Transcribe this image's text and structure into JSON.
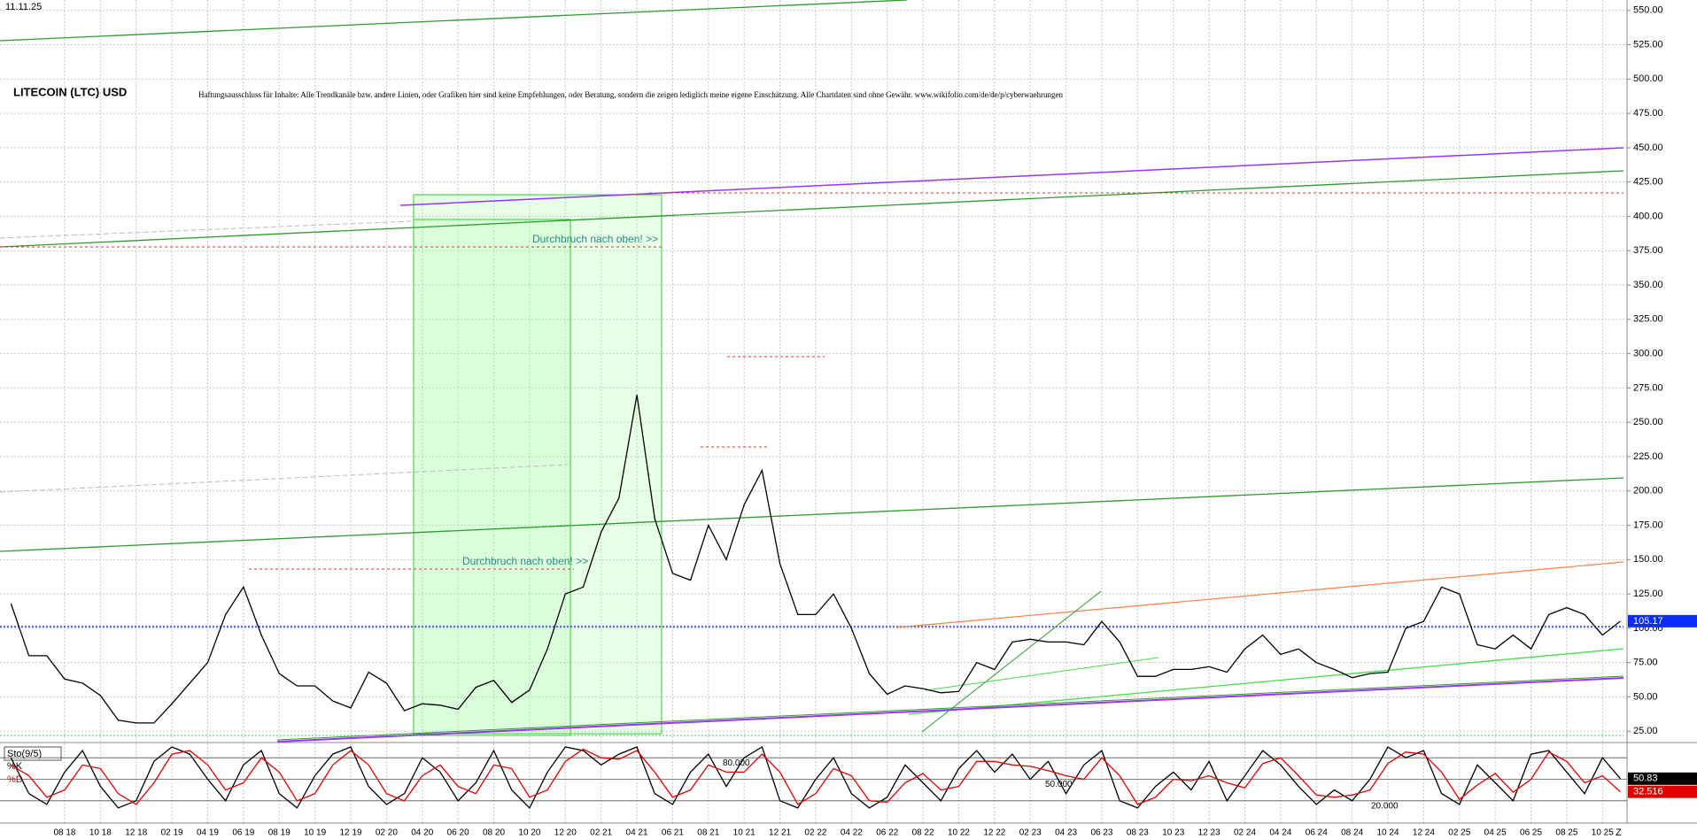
{
  "chart_data": [
    {
      "type": "line",
      "title": "LITECOIN (LTC) USD",
      "date": "11.11.25",
      "disclaimer": "Haftungsausschluss für Inhalte: Alle Trendkanäle bzw. andere Linien, oder Grafiken hier sind keine Empfehlungen, oder Beratung, sondern die zeigen lediglich meine eigene Einschätzung. Alle Chartdaten sind ohne Gewähr.  www.wikifolio.com/de/de/p/cyberwaehrungen",
      "annotations": [
        "Durchbruch nach oben! >>",
        "Durchbruch nach oben! >>"
      ],
      "x_end_label": "Z",
      "categories": [
        null,
        null,
        null,
        "08 18",
        null,
        "10 18",
        null,
        "12 18",
        null,
        "02 19",
        null,
        "04 19",
        null,
        "06 19",
        null,
        "08 19",
        null,
        "10 19",
        null,
        "12 19",
        null,
        "02 20",
        null,
        "04 20",
        null,
        "06 20",
        null,
        "08 20",
        null,
        "10 20",
        null,
        "12 20",
        null,
        "02 21",
        null,
        "04 21",
        null,
        "06 21",
        null,
        "08 21",
        null,
        "10 21",
        null,
        "12 21",
        null,
        "02 22",
        null,
        "04 22",
        null,
        "06 22",
        null,
        "08 22",
        null,
        "10 22",
        null,
        "12 22",
        null,
        "02 23",
        null,
        "04 23",
        null,
        "06 23",
        null,
        "08 23",
        null,
        "10 23",
        null,
        "12 23",
        null,
        "02 24",
        null,
        "04 24",
        null,
        "06 24",
        null,
        "08 24",
        null,
        "10 24",
        null,
        "12 24",
        null,
        "02 25",
        null,
        "04 25",
        null,
        "06 25",
        null,
        "08 25",
        null,
        "10 25",
        null
      ],
      "series": [
        {
          "color": "#000000",
          "values": [
            118,
            80,
            80,
            63,
            60,
            51,
            33,
            31,
            31,
            45,
            60,
            75,
            110,
            130,
            95,
            67,
            58,
            58,
            47,
            42,
            68,
            60,
            40,
            45,
            44,
            41,
            57,
            62,
            46,
            55,
            85,
            125,
            130,
            170,
            195,
            270,
            180,
            140,
            135,
            175,
            150,
            190,
            215,
            147,
            110,
            110,
            125,
            100,
            67,
            52,
            58,
            56,
            53,
            54,
            75,
            70,
            90,
            92,
            90,
            90,
            88,
            105,
            90,
            65,
            65,
            70,
            70,
            72,
            68,
            85,
            95,
            81,
            85,
            75,
            70,
            64,
            67,
            68,
            100,
            105,
            130,
            125,
            88,
            85,
            95,
            85,
            110,
            115,
            110,
            95,
            105.17
          ]
        }
      ],
      "ylim": [
        20,
        555
      ],
      "yticks": [
        {
          "value": 25,
          "label": "25.00"
        },
        {
          "value": 50,
          "label": "50.00"
        },
        {
          "value": 75,
          "label": "75.00"
        },
        {
          "value": 100,
          "label": "100.00"
        },
        {
          "value": 125,
          "label": "125.00"
        },
        {
          "value": 150,
          "label": "150.00"
        },
        {
          "value": 175,
          "label": "175.00"
        },
        {
          "value": 200,
          "label": "200.00"
        },
        {
          "value": 225,
          "label": "225.00"
        },
        {
          "value": 250,
          "label": "250.00"
        },
        {
          "value": 275,
          "label": "275.00"
        },
        {
          "value": 300,
          "label": "300.00"
        },
        {
          "value": 325,
          "label": "325.00"
        },
        {
          "value": 350,
          "label": "350.00"
        },
        {
          "value": 375,
          "label": "375.00"
        },
        {
          "value": 400,
          "label": "400.00"
        },
        {
          "value": 425,
          "label": "425.00"
        },
        {
          "value": 450,
          "label": "450.00"
        },
        {
          "value": 475,
          "label": "475.00"
        },
        {
          "value": 500,
          "label": "500.00"
        },
        {
          "value": 525,
          "label": "525.00"
        },
        {
          "value": 550,
          "label": "550.00"
        }
      ],
      "grid": true
    },
    {
      "type": "line",
      "title": "Sto(9/5)",
      "series": [
        {
          "name": "%K",
          "color": "#000000",
          "values": [
            80,
            30,
            15,
            60,
            90,
            40,
            10,
            20,
            75,
            95,
            85,
            50,
            20,
            70,
            90,
            30,
            10,
            55,
            85,
            95,
            40,
            15,
            30,
            80,
            60,
            20,
            45,
            90,
            35,
            10,
            60,
            95,
            90,
            70,
            85,
            95,
            30,
            15,
            60,
            85,
            40,
            80,
            95,
            20,
            10,
            50,
            80,
            30,
            10,
            25,
            70,
            45,
            20,
            65,
            90,
            60,
            85,
            50,
            75,
            30,
            70,
            90,
            20,
            10,
            40,
            60,
            35,
            75,
            20,
            55,
            90,
            70,
            40,
            15,
            35,
            20,
            50,
            95,
            80,
            90,
            30,
            15,
            70,
            45,
            20,
            85,
            90,
            60,
            30,
            80,
            50.83
          ]
        },
        {
          "name": "%D",
          "color": "#e00000",
          "values": [
            70,
            55,
            25,
            35,
            70,
            65,
            30,
            15,
            45,
            85,
            90,
            70,
            35,
            45,
            80,
            60,
            20,
            30,
            70,
            90,
            70,
            30,
            20,
            55,
            70,
            40,
            30,
            70,
            65,
            25,
            35,
            75,
            92,
            80,
            78,
            90,
            60,
            25,
            35,
            70,
            60,
            60,
            85,
            60,
            15,
            30,
            65,
            55,
            20,
            18,
            45,
            58,
            35,
            40,
            75,
            75,
            70,
            68,
            62,
            55,
            50,
            80,
            55,
            15,
            25,
            50,
            48,
            55,
            45,
            38,
            72,
            80,
            55,
            28,
            25,
            28,
            35,
            72,
            88,
            85,
            60,
            22,
            42,
            58,
            32,
            50,
            88,
            75,
            45,
            55,
            32.516
          ]
        }
      ],
      "ylim": [
        0,
        100
      ],
      "yticks": [
        {
          "value": 20,
          "label": "20.000"
        },
        {
          "value": 50,
          "label": "50.000"
        },
        {
          "value": 80,
          "label": "80.000"
        }
      ]
    }
  ]
}
